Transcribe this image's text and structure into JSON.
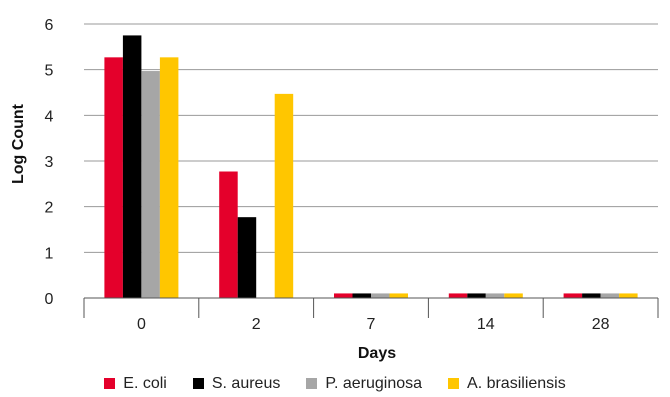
{
  "chart_data": {
    "type": "bar",
    "categories": [
      "0",
      "2",
      "7",
      "14",
      "28"
    ],
    "series": [
      {
        "name": "E. coli",
        "color": "#e4002b",
        "values": [
          5.27,
          2.77,
          0.1,
          0.1,
          0.1
        ]
      },
      {
        "name": "S. aureus",
        "color": "#000000",
        "values": [
          5.75,
          1.77,
          0.1,
          0.1,
          0.1
        ]
      },
      {
        "name": "P. aeruginosa",
        "color": "#a6a6a6",
        "values": [
          4.97,
          0,
          0.1,
          0.1,
          0.1
        ]
      },
      {
        "name": "A. brasiliensis",
        "color": "#ffc600",
        "values": [
          5.27,
          4.47,
          0.1,
          0.1,
          0.1
        ]
      }
    ],
    "xlabel": "Days",
    "ylabel": "Log Count",
    "ylim": [
      0,
      6
    ],
    "yticks": [
      "0",
      "1",
      "2",
      "3",
      "4",
      "5",
      "6"
    ],
    "grid": true,
    "legend_position": "bottom"
  }
}
